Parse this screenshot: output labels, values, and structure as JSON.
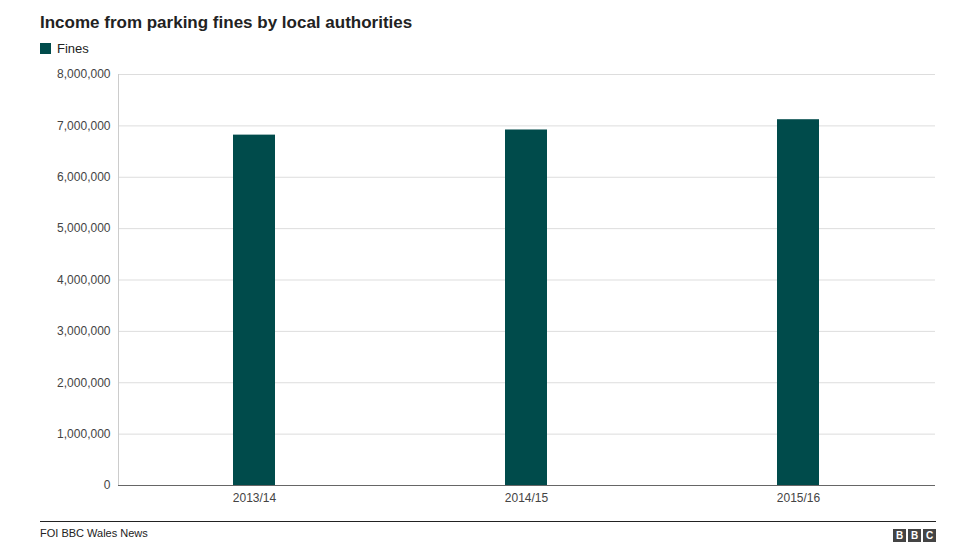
{
  "chart_data": {
    "type": "bar",
    "title": "Income from parking fines by local authorities",
    "source": "FOI BBC Wales News",
    "logo": "BBC",
    "categories": [
      "2013/14",
      "2014/15",
      "2015/16"
    ],
    "series": [
      {
        "name": "Fines",
        "color": "#004b4b",
        "values": [
          6820000,
          6920000,
          7120000
        ]
      }
    ],
    "ylim": [
      0,
      8000000
    ],
    "yticks": [
      0,
      {
        "value": 1000000,
        "label": "1,000,000"
      },
      {
        "value": 2000000,
        "label": "2,000,000"
      },
      {
        "value": 3000000,
        "label": "3,000,000"
      },
      {
        "value": 4000000,
        "label": "4,000,000"
      },
      {
        "value": 5000000,
        "label": "5,000,000"
      },
      {
        "value": 6000000,
        "label": "6,000,000"
      },
      {
        "value": 7000000,
        "label": "7,000,000"
      },
      {
        "value": 8000000,
        "label": "8,000,000"
      }
    ],
    "grid": true,
    "legend": "top-left"
  }
}
